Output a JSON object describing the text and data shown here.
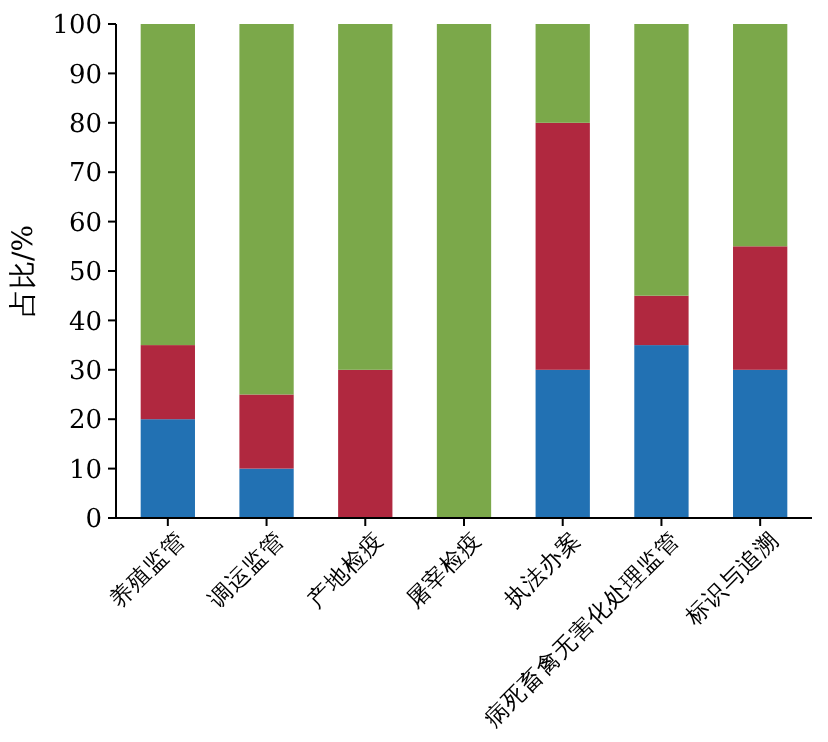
{
  "chart_data": {
    "type": "bar",
    "stacked": true,
    "ylabel": "占比/%",
    "categories": [
      "养殖监管",
      "调运监管",
      "产地检疫",
      "屠宰检疫",
      "执法办案",
      "病死畜禽无害化处理监管",
      "标识与追溯"
    ],
    "series": [
      {
        "color": "#2271b3",
        "values": [
          20,
          10,
          0,
          0,
          30,
          35,
          30
        ]
      },
      {
        "color": "#b0283f",
        "values": [
          15,
          15,
          30,
          0,
          50,
          10,
          25
        ]
      },
      {
        "color": "#7ba84a",
        "values": [
          65,
          75,
          70,
          100,
          20,
          55,
          45
        ]
      }
    ],
    "ylim": [
      0,
      100
    ],
    "yticks": [
      0,
      10,
      20,
      30,
      40,
      50,
      60,
      70,
      80,
      90,
      100
    ],
    "grid": false
  }
}
